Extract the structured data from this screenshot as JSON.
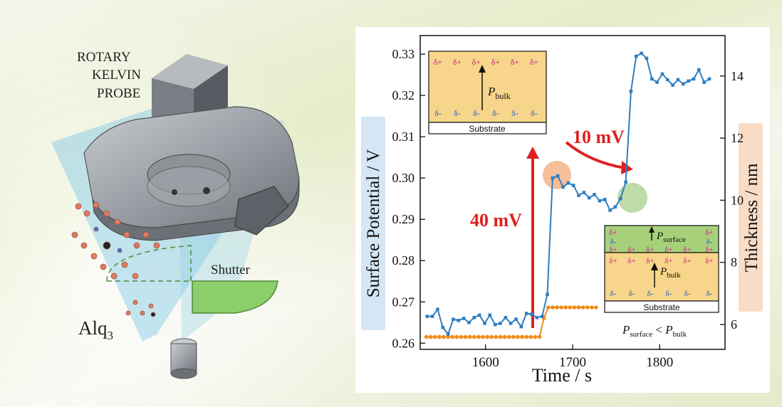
{
  "illustration": {
    "probe_label": [
      "ROTARY",
      "KELVIN",
      "PROBE"
    ],
    "shutter_label": "Shutter",
    "source_label_main": "Alq",
    "source_label_sub": "3"
  },
  "inset_top": {
    "charges": [
      "δ+",
      "δ+",
      "δ+",
      "δ+",
      "δ+",
      "δ+"
    ],
    "charges_bottom": [
      "δ-",
      "δ-",
      "δ-",
      "δ-",
      "δ-",
      "δ-"
    ],
    "polarization_main": "P",
    "polarization_sub": "bulk",
    "substrate_label": "Substrate"
  },
  "inset_bottom": {
    "surface_main": "P",
    "surface_sub": "surface",
    "bulk_main": "P",
    "bulk_sub": "bulk",
    "substrate_label": "Substrate",
    "rel_left_main": "P",
    "rel_left_sub": "surface",
    "rel_op": " < ",
    "rel_right_main": "P",
    "rel_right_sub": "bulk"
  },
  "annotations": {
    "jump1": "40 mV",
    "jump2": "10 mV"
  },
  "colors": {
    "potential": "#2f7fc1",
    "thickness": "#f08c1c",
    "arrow": "#e02020",
    "inset_fill": "#f7d58a",
    "inset_fill_green": "#a6d17a",
    "circle_orange": "#f2a978",
    "circle_green": "#a7d08a"
  },
  "chart_data": {
    "type": "line",
    "xlabel": "Time / s",
    "ylabel": "Surface Potential / V",
    "y2label": "Thickness / nm",
    "xlim": [
      1525,
      1875
    ],
    "ylim": [
      0.2585,
      0.3345
    ],
    "y2lim": [
      5.2,
      15.3
    ],
    "xticks": [
      1600,
      1700,
      1800
    ],
    "yticks": [
      0.26,
      0.27,
      0.28,
      0.29,
      0.3,
      0.31,
      0.32,
      0.33
    ],
    "ytick_labels": [
      "0.26",
      "0.27",
      "0.28",
      "0.29",
      "0.30",
      "0.31",
      "0.32",
      "0.33"
    ],
    "y2ticks": [
      6,
      8,
      10,
      12,
      14
    ],
    "grid": false,
    "series": [
      {
        "axis": "left",
        "marker": "square",
        "x": [
          1533,
          1539,
          1545,
          1551,
          1557,
          1563,
          1569,
          1575,
          1581,
          1587,
          1593,
          1599,
          1605,
          1611,
          1617,
          1623,
          1629,
          1635,
          1641,
          1647,
          1653,
          1659,
          1665,
          1671,
          1677,
          1683,
          1689,
          1695,
          1701,
          1707,
          1713,
          1719,
          1725,
          1731,
          1737,
          1743,
          1749,
          1755,
          1761,
          1767,
          1773,
          1779,
          1785,
          1791,
          1797,
          1803,
          1809,
          1815,
          1821,
          1827,
          1833,
          1839,
          1845,
          1851,
          1857
        ],
        "y": [
          0.2665,
          0.2665,
          0.2682,
          0.2638,
          0.2622,
          0.2658,
          0.2655,
          0.266,
          0.265,
          0.2662,
          0.2668,
          0.2648,
          0.2668,
          0.2645,
          0.2648,
          0.2662,
          0.2648,
          0.2658,
          0.264,
          0.2672,
          0.267,
          0.2662,
          0.2665,
          0.2718,
          0.3,
          0.3005,
          0.2978,
          0.2988,
          0.2982,
          0.2958,
          0.2965,
          0.2952,
          0.296,
          0.2945,
          0.2948,
          0.2922,
          0.293,
          0.295,
          0.299,
          0.321,
          0.3295,
          0.3302,
          0.329,
          0.324,
          0.3232,
          0.3252,
          0.3238,
          0.3225,
          0.3238,
          0.3228,
          0.3235,
          0.324,
          0.3262,
          0.3232,
          0.324
        ]
      },
      {
        "axis": "right",
        "marker": "circle",
        "x": [
          1532,
          1537,
          1542,
          1547,
          1552,
          1557,
          1562,
          1567,
          1572,
          1577,
          1582,
          1587,
          1592,
          1597,
          1602,
          1607,
          1612,
          1617,
          1622,
          1627,
          1632,
          1637,
          1642,
          1647,
          1652,
          1657,
          1662,
          1667,
          1672,
          1677,
          1682,
          1687,
          1692,
          1697,
          1702,
          1707,
          1712,
          1717,
          1722,
          1727
        ],
        "y": [
          5.6,
          5.6,
          5.6,
          5.6,
          5.6,
          5.6,
          5.6,
          5.6,
          5.6,
          5.6,
          5.6,
          5.6,
          5.6,
          5.6,
          5.6,
          5.6,
          5.6,
          5.6,
          5.6,
          5.6,
          5.6,
          5.6,
          5.6,
          5.6,
          5.6,
          5.6,
          5.6,
          6.2,
          6.55,
          6.55,
          6.55,
          6.55,
          6.55,
          6.55,
          6.55,
          6.55,
          6.55,
          6.55,
          6.55,
          6.55
        ]
      }
    ]
  }
}
